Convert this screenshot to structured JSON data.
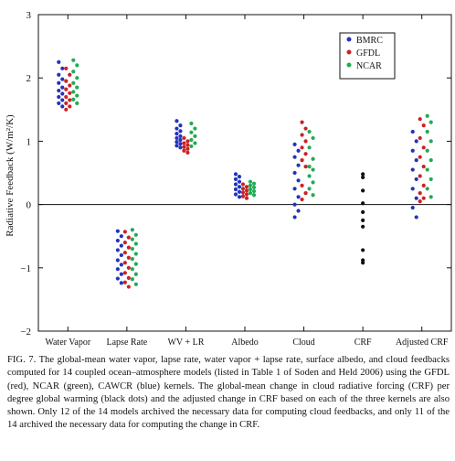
{
  "chart_data": {
    "type": "scatter",
    "title": "",
    "xlabel": "",
    "ylabel": "Radiative Feedback (W/m²/K)",
    "ylim": [
      -2,
      3
    ],
    "yticks": [
      -2,
      -1,
      0,
      1,
      2,
      3
    ],
    "categories": [
      "Water Vapor",
      "Lapse Rate",
      "WV + LR",
      "Albedo",
      "Cloud",
      "CRF",
      "Adjusted CRF"
    ],
    "zero_line": true,
    "legend_position": "top-right",
    "series": [
      {
        "name": "BMRC",
        "color": "#2233bb",
        "values": [
          [
            2.25,
            2.15,
            2.05,
            1.98,
            1.92,
            1.85,
            1.8,
            1.75,
            1.7,
            1.65,
            1.6,
            1.55
          ],
          [
            -0.42,
            -0.5,
            -0.57,
            -0.65,
            -0.72,
            -0.8,
            -0.88,
            -0.95,
            -1.02,
            -1.1,
            -1.17,
            -1.24
          ],
          [
            1.32,
            1.25,
            1.2,
            1.16,
            1.12,
            1.08,
            1.05,
            1.02,
            0.99,
            0.96,
            0.93,
            0.9
          ],
          [
            0.48,
            0.44,
            0.4,
            0.36,
            0.32,
            0.28,
            0.24,
            0.2,
            0.16,
            0.12
          ],
          [
            0.95,
            0.85,
            0.75,
            0.62,
            0.5,
            0.38,
            0.25,
            0.12,
            0.0,
            -0.1,
            -0.2
          ],
          [],
          [
            1.15,
            1.0,
            0.85,
            0.7,
            0.55,
            0.4,
            0.25,
            0.1,
            -0.05,
            -0.2
          ]
        ]
      },
      {
        "name": "GFDL",
        "color": "#cc2222",
        "values": [
          [
            2.15,
            2.05,
            1.95,
            1.88,
            1.82,
            1.76,
            1.7,
            1.65,
            1.6,
            1.55,
            1.5
          ],
          [
            -0.43,
            -0.52,
            -0.6,
            -0.68,
            -0.76,
            -0.84,
            -0.92,
            -1.0,
            -1.08,
            -1.16,
            -1.23,
            -1.3
          ],
          [
            1.05,
            1.0,
            0.97,
            0.94,
            0.91,
            0.88,
            0.85,
            0.82
          ],
          [
            0.32,
            0.28,
            0.25,
            0.22,
            0.19,
            0.16,
            0.13,
            0.1
          ],
          [
            1.3,
            1.2,
            1.1,
            1.0,
            0.9,
            0.8,
            0.7,
            0.6,
            0.3,
            0.18,
            0.08
          ],
          [],
          [
            1.35,
            1.25,
            1.05,
            0.9,
            0.75,
            0.6,
            0.45,
            0.3,
            0.18,
            0.1,
            0.05
          ]
        ]
      },
      {
        "name": "NCAR",
        "color": "#22aa55",
        "values": [
          [
            2.28,
            2.2,
            2.1,
            2.0,
            1.92,
            1.85,
            1.78,
            1.72,
            1.66,
            1.6
          ],
          [
            -0.4,
            -0.48,
            -0.55,
            -0.62,
            -0.7,
            -0.78,
            -0.86,
            -0.94,
            -1.02,
            -1.1,
            -1.18,
            -1.26
          ],
          [
            1.28,
            1.2,
            1.14,
            1.08,
            1.02,
            0.97,
            0.92
          ],
          [
            0.36,
            0.33,
            0.3,
            0.27,
            0.24,
            0.21,
            0.18,
            0.15
          ],
          [
            1.15,
            1.05,
            0.9,
            0.72,
            0.6,
            0.55,
            0.45,
            0.35,
            0.25,
            0.15
          ],
          [],
          [
            1.4,
            1.3,
            1.15,
            1.0,
            0.85,
            0.7,
            0.55,
            0.4,
            0.25,
            0.12
          ]
        ]
      },
      {
        "name": "",
        "color": "#111111",
        "values": [
          [],
          [],
          [],
          [],
          [],
          [
            0.48,
            0.43,
            0.22,
            0.02,
            -0.12,
            -0.25,
            -0.35,
            -0.72,
            -0.88,
            -0.92
          ],
          []
        ]
      }
    ]
  },
  "caption": "FIG. 7. The global-mean water vapor, lapse rate, water vapor + lapse rate, surface albedo, and cloud feedbacks computed for 14 coupled ocean–atmosphere models (listed in Table 1 of Soden and Held 2006) using the GFDL (red), NCAR (green), CAWCR (blue) kernels. The global-mean change in cloud radiative forcing (CRF) per degree global warming (black dots) and the adjusted change in CRF based on each of the three kernels are also shown. Only 12 of the 14 models archived the necessary data for computing cloud feedbacks, and only 11 of the 14 archived the necessary data for computing the change in CRF."
}
